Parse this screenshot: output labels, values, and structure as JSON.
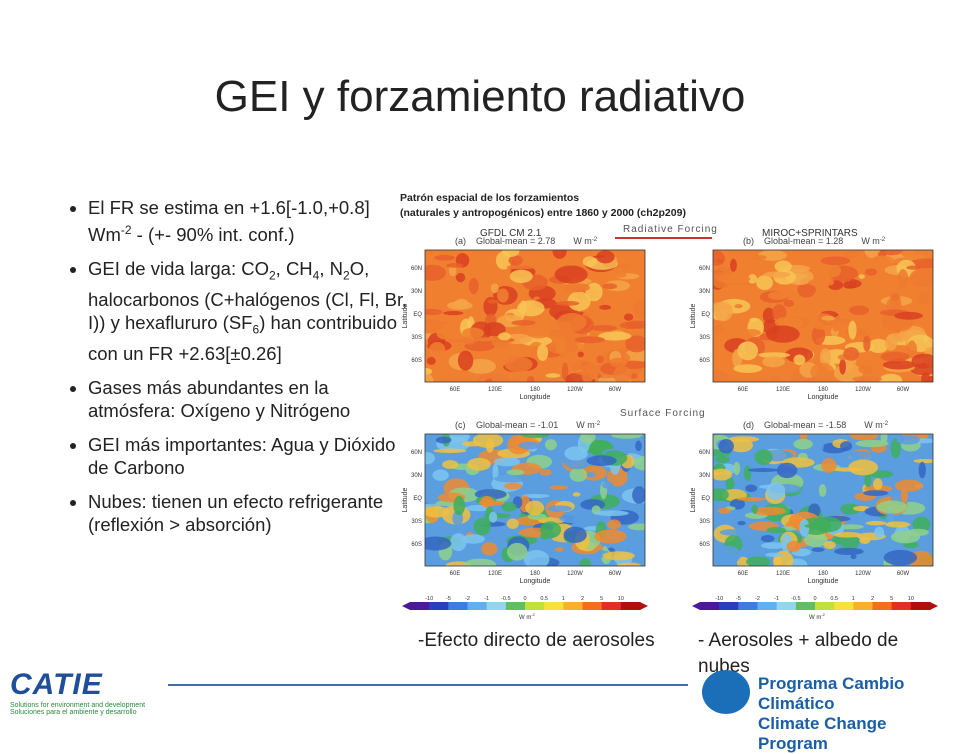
{
  "title": "GEI y forzamiento radiativo",
  "bullets": [
    {
      "parts": [
        {
          "text": "El FR se estima en +1.6[-1.0,+0.8] Wm"
        },
        {
          "sup": "-2"
        },
        {
          "text": " - (+- 90% int. conf.)"
        }
      ]
    },
    {
      "parts": [
        {
          "text": "GEI de vida larga: CO"
        },
        {
          "sub": "2"
        },
        {
          "text": ", CH"
        },
        {
          "sub": "4"
        },
        {
          "text": ", N"
        },
        {
          "sub": "2"
        },
        {
          "text": "O, halocarbonos (C+halógenos (Cl, Fl, Br, I)) y hexaflururo (SF"
        },
        {
          "sub": "6"
        },
        {
          "text": ") han contribuido con un FR +2.63[±0.26]"
        }
      ]
    },
    {
      "parts": [
        {
          "text": "Gases más abundantes en la atmósfera: Oxígeno y Nitrógeno"
        }
      ]
    },
    {
      "parts": [
        {
          "text": " GEI más importantes: Agua y Dióxido de Carbono"
        }
      ]
    },
    {
      "parts": [
        {
          "text": " Nubes: tienen un efecto refrigerante (reflexión > absorción)"
        }
      ]
    }
  ],
  "figure": {
    "caption": "Patrón espacial de los forzamientos (naturales y antropogénicos) entre 1860 y 2000 (ch2p209)",
    "models": [
      "GFDL CM 2.1",
      "MIROC+SPRINTARS"
    ],
    "rows": [
      "Radiative Forcing",
      "Surface Forcing"
    ],
    "panels": [
      {
        "label": "(a)",
        "mean": "Global-mean =  2.78",
        "unit": "W m",
        "exp": "-2"
      },
      {
        "label": "(b)",
        "mean": "Global-mean =  1.28",
        "unit": "W m",
        "exp": "-2"
      },
      {
        "label": "(c)",
        "mean": "Global-mean = -1.01",
        "unit": "W m",
        "exp": "-2"
      },
      {
        "label": "(d)",
        "mean": "Global-mean = -1.58",
        "unit": "W m",
        "exp": "-2"
      }
    ],
    "lat_ticks": [
      "60N",
      "30N",
      "EQ",
      "30S",
      "60S"
    ],
    "lon_ticks": [
      "60E",
      "120E",
      "180",
      "120W",
      "60W"
    ],
    "lat_axis": "Latitude",
    "lon_axis": "Longitude",
    "colorbar_ticks": [
      "-10",
      "-5",
      "-2",
      "-1",
      "-0.5",
      "0",
      "0.5",
      "1",
      "2",
      "5",
      "10"
    ],
    "colorbar_unit": "W m",
    "colorbar_exp": "-2"
  },
  "captions": [
    "-Efecto directo de aerosoles",
    "- Aerosoles + albedo de nubes"
  ],
  "footer": {
    "logo": "CATIE",
    "tagline_en": "Solutions for environment and development",
    "tagline_es": "Soluciones para el ambiente y desarrollo",
    "program_es": "Programa Cambio Climático",
    "program_en": "Climate Change Program"
  }
}
